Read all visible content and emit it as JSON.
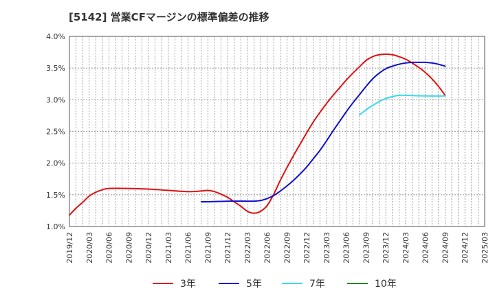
{
  "chart_data": {
    "type": "line",
    "title": "[5142]  営業CFマージンの標準偏差の推移",
    "xlabel": "",
    "ylabel": "",
    "x_ticks": [
      "2019/12",
      "2020/03",
      "2020/06",
      "2020/09",
      "2020/12",
      "2021/03",
      "2021/06",
      "2021/09",
      "2021/12",
      "2022/03",
      "2022/06",
      "2022/09",
      "2022/12",
      "2023/03",
      "2023/06",
      "2023/09",
      "2023/12",
      "2024/03",
      "2024/06",
      "2024/09",
      "2024/12",
      "2025/03"
    ],
    "y_ticks": [
      "1.0%",
      "1.5%",
      "2.0%",
      "2.5%",
      "3.0%",
      "3.5%",
      "4.0%"
    ],
    "ylim": [
      1.0,
      4.0
    ],
    "grid": true,
    "legend_position": "bottom",
    "colors": {
      "3年": "#e01010",
      "5年": "#1010c8",
      "7年": "#33ddee",
      "10年": "#228822"
    },
    "series": [
      {
        "name": "3年",
        "x": [
          "2019/12",
          "2020/01",
          "2020/02",
          "2020/03",
          "2020/04",
          "2020/05",
          "2020/06",
          "2020/09",
          "2020/12",
          "2021/03",
          "2021/06",
          "2021/08",
          "2021/09",
          "2021/10",
          "2021/11",
          "2021/12",
          "2022/01",
          "2022/02",
          "2022/03",
          "2022/04",
          "2022/05",
          "2022/06",
          "2022/07",
          "2022/08",
          "2022/09",
          "2022/10",
          "2022/11",
          "2022/12",
          "2023/01",
          "2023/02",
          "2023/03",
          "2023/04",
          "2023/05",
          "2023/06",
          "2023/07",
          "2023/08",
          "2023/09",
          "2023/10",
          "2023/11",
          "2023/12",
          "2024/01",
          "2024/02",
          "2024/03",
          "2024/04",
          "2024/05",
          "2024/06",
          "2024/07",
          "2024/08",
          "2024/09"
        ],
        "values": [
          1.18,
          1.29,
          1.38,
          1.48,
          1.54,
          1.58,
          1.6,
          1.6,
          1.59,
          1.57,
          1.55,
          1.56,
          1.57,
          1.55,
          1.51,
          1.46,
          1.39,
          1.32,
          1.24,
          1.21,
          1.24,
          1.33,
          1.51,
          1.73,
          1.93,
          2.12,
          2.3,
          2.48,
          2.65,
          2.8,
          2.94,
          3.07,
          3.19,
          3.31,
          3.42,
          3.52,
          3.62,
          3.68,
          3.71,
          3.72,
          3.71,
          3.68,
          3.64,
          3.58,
          3.51,
          3.43,
          3.33,
          3.21,
          3.07
        ]
      },
      {
        "name": "5年",
        "x": [
          "2021/08",
          "2021/09",
          "2021/12",
          "2022/03",
          "2022/04",
          "2022/05",
          "2022/06",
          "2022/07",
          "2022/08",
          "2022/09",
          "2022/10",
          "2022/11",
          "2022/12",
          "2023/01",
          "2023/02",
          "2023/03",
          "2023/04",
          "2023/05",
          "2023/06",
          "2023/07",
          "2023/08",
          "2023/09",
          "2023/10",
          "2023/11",
          "2023/12",
          "2024/01",
          "2024/02",
          "2024/03",
          "2024/04",
          "2024/05",
          "2024/06",
          "2024/07",
          "2024/08",
          "2024/09"
        ],
        "values": [
          1.39,
          1.39,
          1.4,
          1.4,
          1.4,
          1.41,
          1.44,
          1.49,
          1.56,
          1.64,
          1.73,
          1.83,
          1.94,
          2.07,
          2.2,
          2.35,
          2.51,
          2.66,
          2.81,
          2.95,
          3.08,
          3.21,
          3.33,
          3.42,
          3.49,
          3.53,
          3.56,
          3.58,
          3.59,
          3.59,
          3.59,
          3.58,
          3.56,
          3.53
        ]
      },
      {
        "name": "7年",
        "x": [
          "2023/08",
          "2023/09",
          "2023/10",
          "2023/11",
          "2023/12",
          "2024/01",
          "2024/02",
          "2024/03",
          "2024/06",
          "2024/09"
        ],
        "values": [
          2.76,
          2.84,
          2.91,
          2.97,
          3.02,
          3.05,
          3.07,
          3.07,
          3.06,
          3.06
        ]
      },
      {
        "name": "10年",
        "x": [],
        "values": []
      }
    ]
  }
}
